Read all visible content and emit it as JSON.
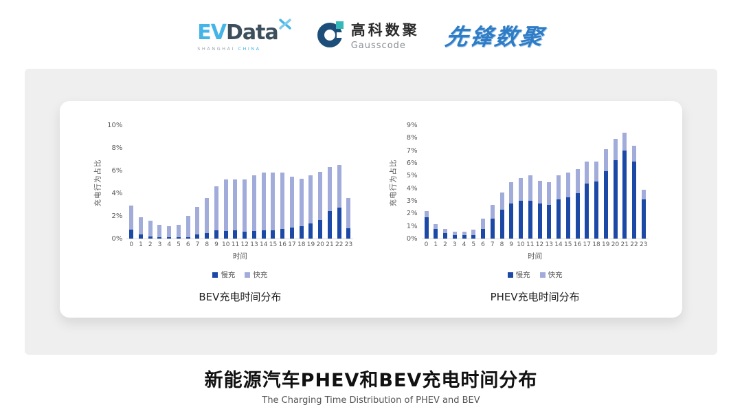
{
  "header": {
    "evdata": {
      "ev": "EV",
      "data": "Data",
      "sub1": "SHANGHAI",
      "sub2": "CHINA"
    },
    "gausscode": {
      "cn": "高科数聚",
      "en": "Gausscode"
    },
    "xianfeng": {
      "text": "先锋数聚"
    }
  },
  "footer": {
    "title": "新能源汽车PHEV和BEV充电时间分布",
    "subtitle": "The Charging Time Distribution of PHEV and BEV"
  },
  "colors": {
    "slow": "#1B49A5",
    "fast": "#A2ACDB",
    "axis_text": "#595959",
    "baseline": "#d9d9d9",
    "panel_bg": "#efeff0"
  },
  "chart_data": [
    {
      "type": "bar",
      "stacked": true,
      "title": "BEV充电时间分布",
      "xlabel": "时间",
      "ylabel": "充电行为占比",
      "categories": [
        "0",
        "1",
        "2",
        "3",
        "4",
        "5",
        "6",
        "7",
        "8",
        "9",
        "10",
        "11",
        "12",
        "13",
        "14",
        "15",
        "16",
        "17",
        "18",
        "19",
        "20",
        "21",
        "22",
        "23"
      ],
      "series": [
        {
          "name": "慢充",
          "color": "#1B49A5",
          "values": [
            0.8,
            0.35,
            0.2,
            0.15,
            0.1,
            0.1,
            0.15,
            0.35,
            0.5,
            0.7,
            0.65,
            0.7,
            0.6,
            0.65,
            0.7,
            0.7,
            0.85,
            1.0,
            1.1,
            1.35,
            1.65,
            2.4,
            2.7,
            0.9
          ]
        },
        {
          "name": "快充",
          "color": "#A2ACDB",
          "values": [
            2.1,
            1.55,
            1.35,
            1.05,
            1.0,
            1.1,
            1.85,
            2.45,
            3.1,
            3.9,
            4.55,
            4.5,
            4.6,
            4.95,
            5.1,
            5.1,
            4.95,
            4.45,
            4.2,
            4.2,
            4.25,
            3.9,
            3.8,
            2.7
          ]
        }
      ],
      "ylim": [
        0,
        10
      ],
      "yticks": [
        0,
        2,
        4,
        6,
        8,
        10
      ],
      "ytick_suffix": "%",
      "grid": false,
      "legend_position": "bottom"
    },
    {
      "type": "bar",
      "stacked": true,
      "title": "PHEV充电时间分布",
      "xlabel": "时间",
      "ylabel": "充电行为占比",
      "categories": [
        "0",
        "1",
        "2",
        "3",
        "4",
        "5",
        "6",
        "7",
        "8",
        "9",
        "10",
        "11",
        "12",
        "13",
        "14",
        "15",
        "16",
        "17",
        "18",
        "19",
        "20",
        "21",
        "22",
        "23"
      ],
      "series": [
        {
          "name": "慢充",
          "color": "#1B49A5",
          "values": [
            1.7,
            0.75,
            0.45,
            0.25,
            0.25,
            0.3,
            0.75,
            1.6,
            2.3,
            2.8,
            3.0,
            3.0,
            2.8,
            2.65,
            3.1,
            3.25,
            3.6,
            4.35,
            4.55,
            5.35,
            6.2,
            7.0,
            6.1,
            3.1
          ]
        },
        {
          "name": "快充",
          "color": "#A2ACDB",
          "values": [
            0.5,
            0.4,
            0.3,
            0.3,
            0.3,
            0.4,
            0.85,
            1.1,
            1.35,
            1.7,
            1.8,
            2.0,
            1.8,
            1.85,
            1.9,
            2.0,
            1.9,
            1.75,
            1.55,
            1.75,
            1.7,
            1.4,
            1.25,
            0.75
          ]
        }
      ],
      "ylim": [
        0,
        9
      ],
      "yticks": [
        0,
        1,
        2,
        3,
        4,
        5,
        6,
        7,
        8,
        9
      ],
      "ytick_suffix": "%",
      "grid": false,
      "legend_position": "bottom"
    }
  ]
}
